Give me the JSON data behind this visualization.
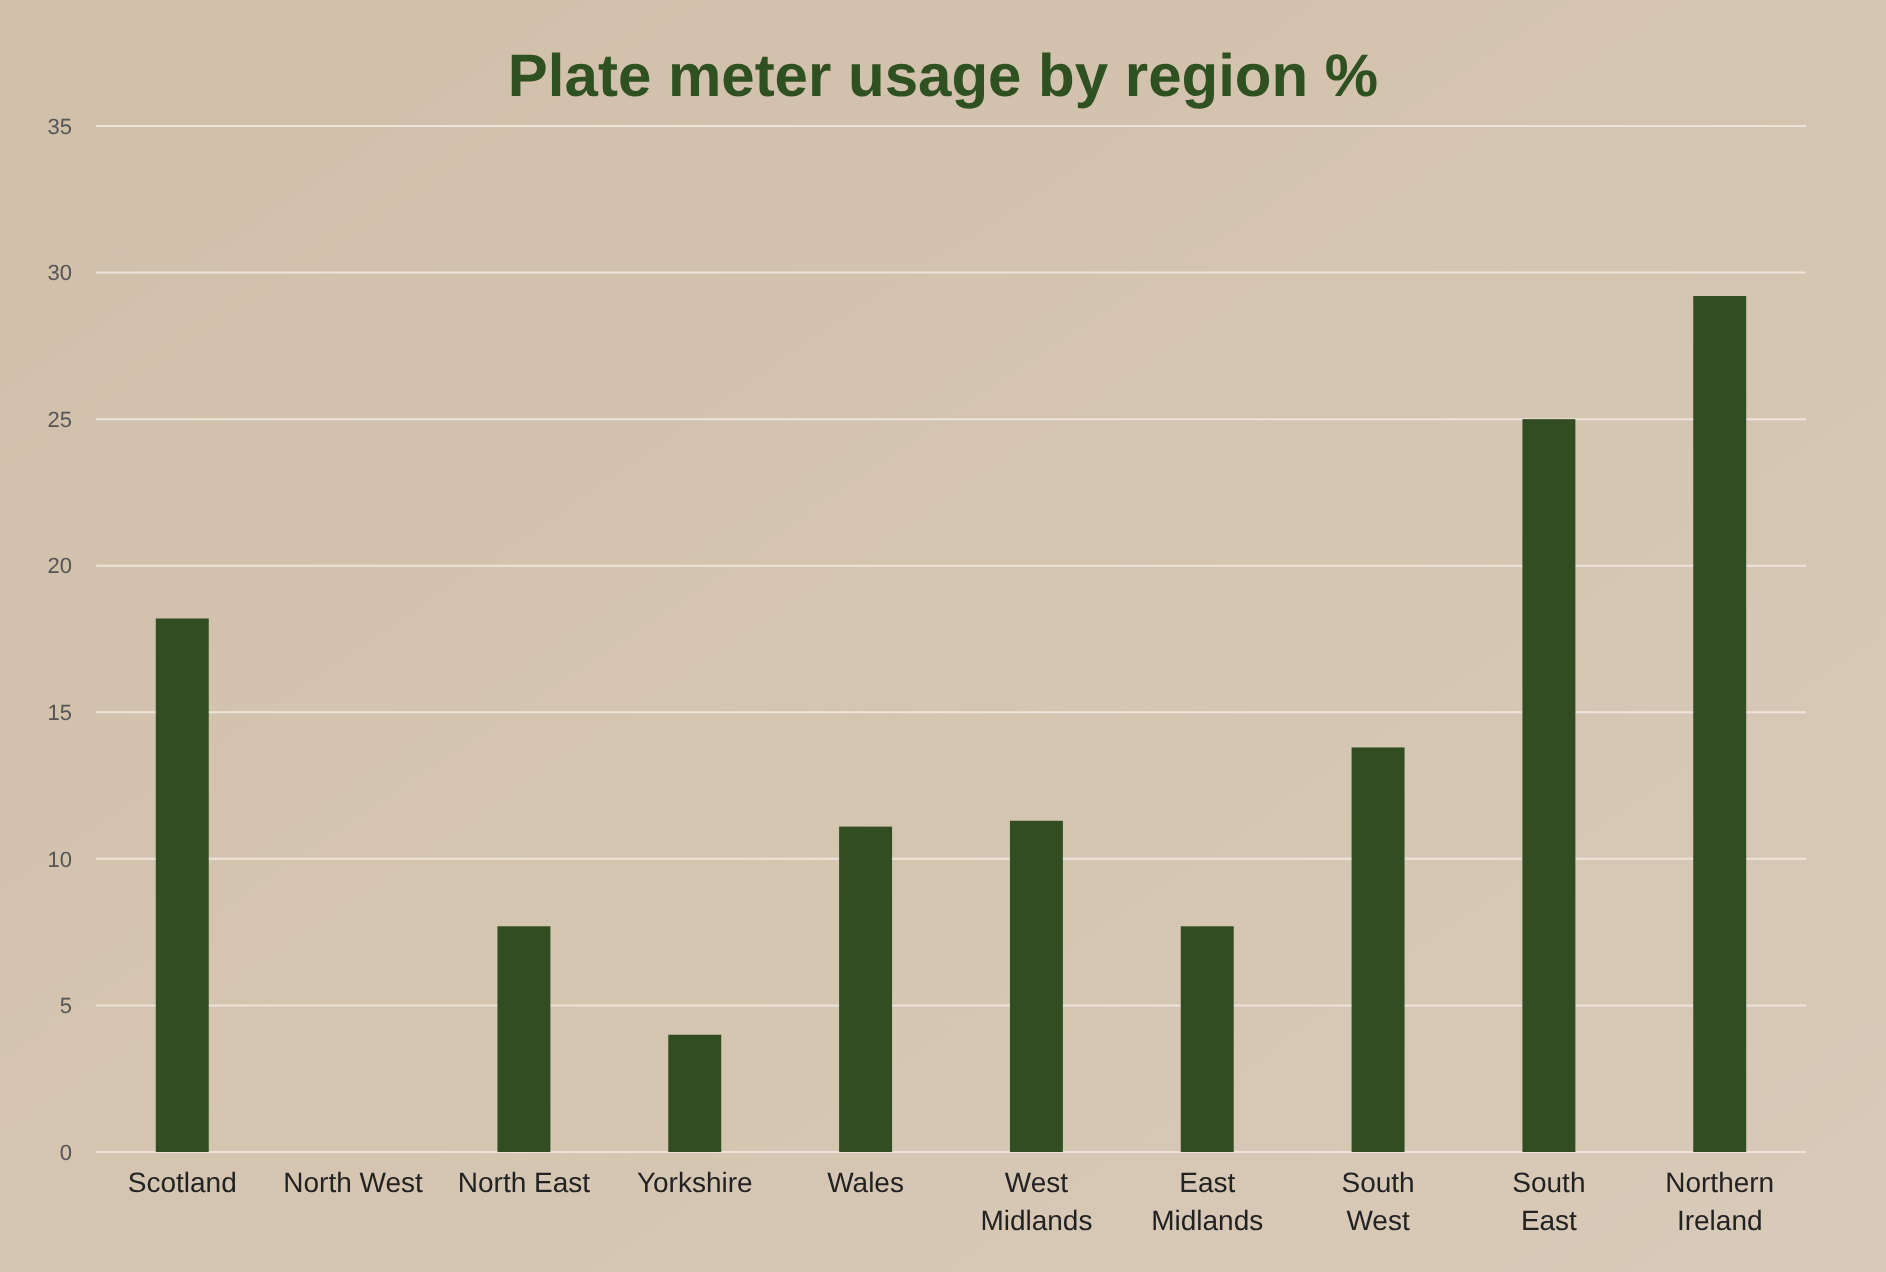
{
  "chart_data": {
    "type": "bar",
    "title": "Plate meter usage by region %",
    "categories": [
      "Scotland",
      "North West",
      "North East",
      "Yorkshire",
      "Wales",
      "West\nMidlands",
      "East\nMidlands",
      "South\nWest",
      "South\nEast",
      "Northern\nIreland"
    ],
    "values": [
      18.2,
      0,
      7.7,
      4,
      11.1,
      11.3,
      7.7,
      13.8,
      25,
      29.2
    ],
    "color": "#334d22",
    "ylim": [
      0,
      35
    ],
    "yticks": [
      0,
      5,
      10,
      15,
      20,
      25,
      30,
      35
    ],
    "grid": "y"
  }
}
